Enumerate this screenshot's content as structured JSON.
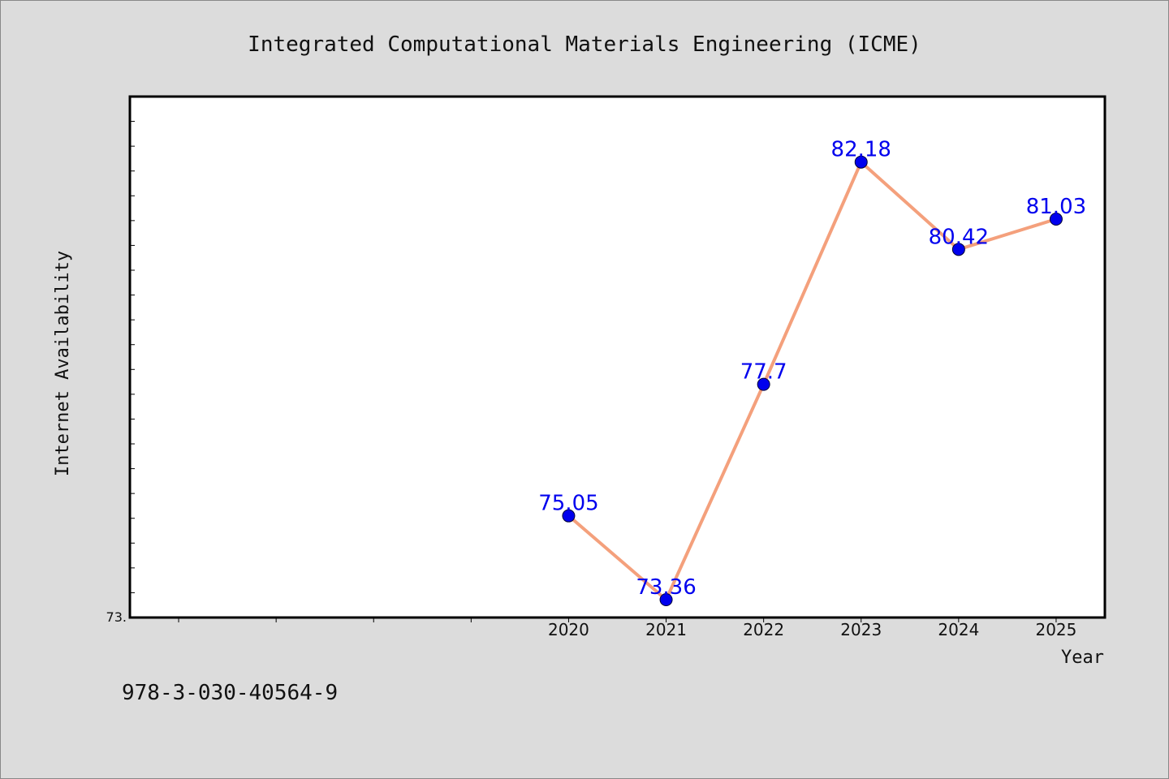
{
  "chart_data": {
    "type": "line",
    "title": "Integrated Computational Materials Engineering (ICME)",
    "xlabel": "Year",
    "ylabel": "Internet Availability",
    "x": [
      "2020",
      "2021",
      "2022",
      "2023",
      "2024",
      "2025"
    ],
    "series": [
      {
        "values": [
          75.05,
          73.36,
          77.7,
          82.18,
          80.42,
          81.03
        ]
      }
    ],
    "data_labels": [
      "75.05",
      "73.36",
      "77.7",
      "82.18",
      "80.42",
      "81.03"
    ],
    "y_tick_labels": [
      "73."
    ],
    "xlim": [
      2015.5,
      2025.5
    ],
    "ylim": [
      73.0,
      83.5
    ],
    "grid": false,
    "legend": "none",
    "colors": {
      "line": "#f4a07c",
      "marker": "#0000ee",
      "label": "#0000ee",
      "plot_bg": "#ffffff",
      "page_bg": "#dcdcdc"
    }
  },
  "footnote": "978-3-030-40564-9"
}
